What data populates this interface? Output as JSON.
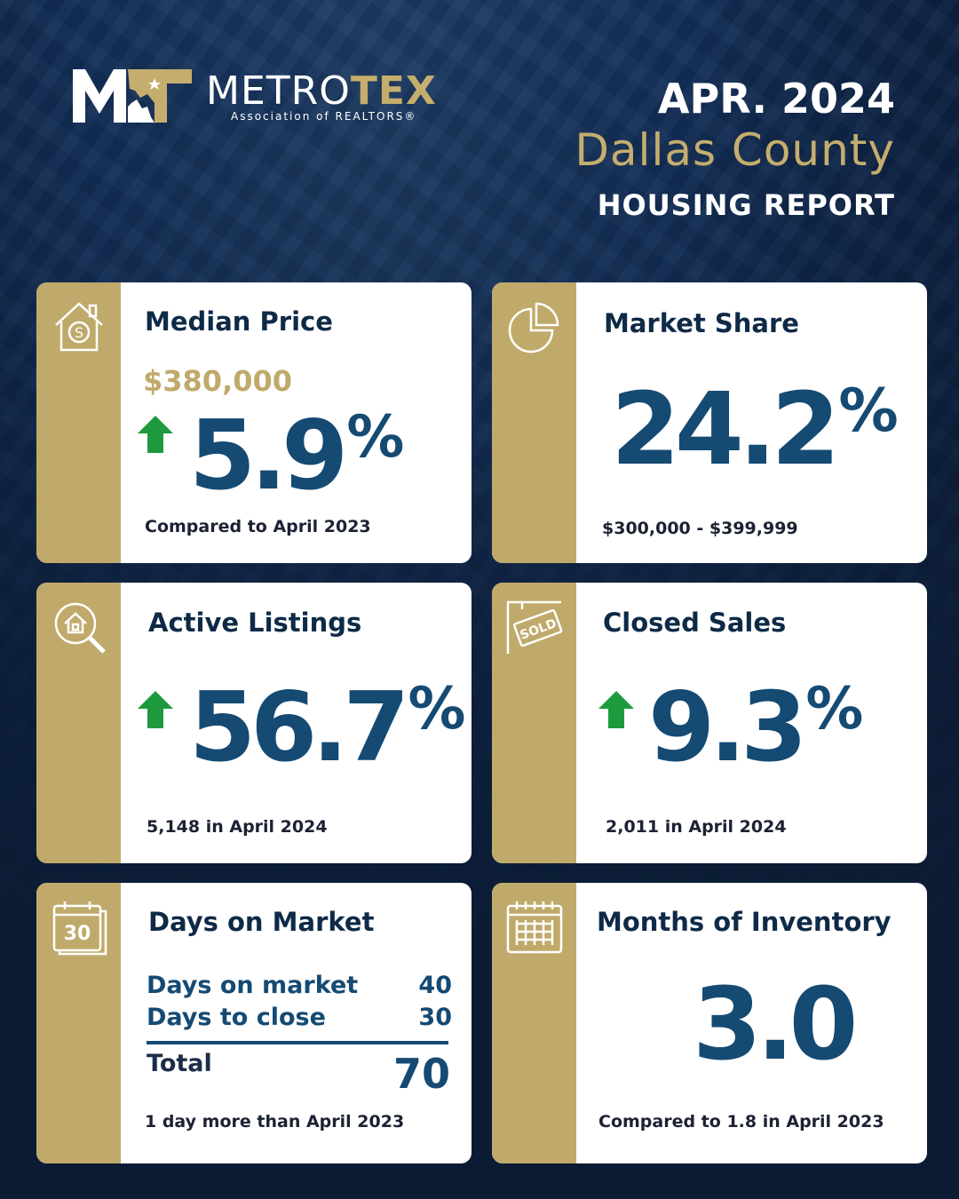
{
  "brand": {
    "name_part1": "METRO",
    "name_part2": "TEX",
    "tagline": "Association of REALTORS®",
    "gold": "#c5ae6d",
    "navy": "#0e2341"
  },
  "header": {
    "date": "APR. 2024",
    "county": "Dallas County",
    "report": "HOUSING REPORT"
  },
  "cards": {
    "median_price": {
      "icon": "house-dollar-icon",
      "title": "Median Price",
      "price": "$380,000",
      "change": "5.9",
      "pct": "%",
      "direction": "up",
      "footnote": "Compared to April 2023"
    },
    "market_share": {
      "icon": "pie-chart-icon",
      "title": "Market Share",
      "value": "24.2",
      "pct": "%",
      "footnote": "$300,000 - $399,999"
    },
    "active_listings": {
      "icon": "house-search-icon",
      "title": "Active Listings",
      "change": "56.7",
      "pct": "%",
      "direction": "up",
      "footnote": "5,148 in April 2024"
    },
    "closed_sales": {
      "icon": "sold-sign-icon",
      "sign_text": "SOLD",
      "title": "Closed Sales",
      "change": "9.3",
      "pct": "%",
      "direction": "up",
      "footnote": "2,011 in April 2024"
    },
    "days_on_market": {
      "icon": "calendar-30-icon",
      "icon_text": "30",
      "title": "Days on Market",
      "rows": [
        {
          "label": "Days on market",
          "value": "40"
        },
        {
          "label": "Days to close",
          "value": "30"
        }
      ],
      "total_label": "Total",
      "total_value": "70",
      "footnote": "1 day more than April 2023"
    },
    "months_inventory": {
      "icon": "calendar-grid-icon",
      "title": "Months of Inventory",
      "value": "3.0",
      "footnote": "Compared to 1.8 in April 2023"
    }
  },
  "colors": {
    "up_arrow": "#1e9a3e",
    "number": "#154a73",
    "side_bar": "#c0aa6b"
  }
}
